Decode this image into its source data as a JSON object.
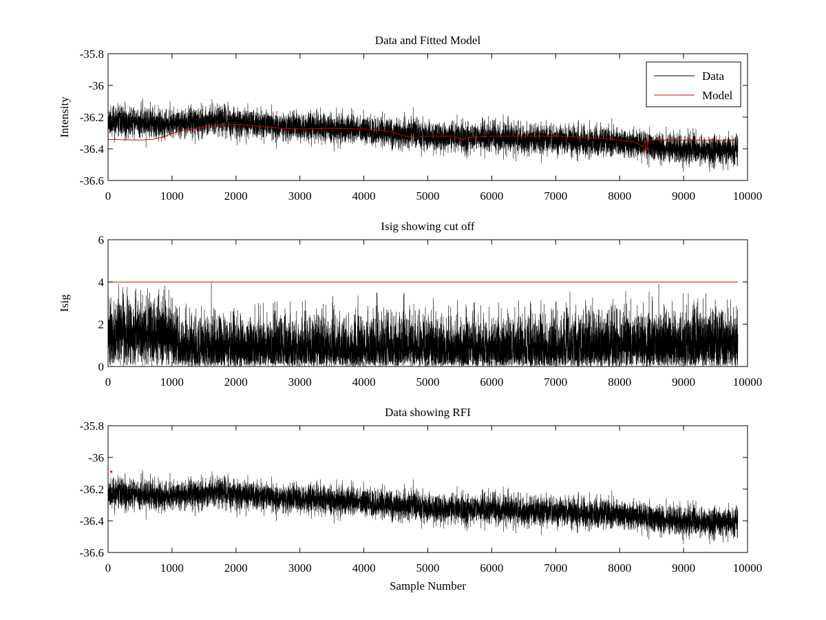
{
  "figure": {
    "background": "#ffffff"
  },
  "chart_data": [
    {
      "type": "line",
      "title": "Data and Fitted Model",
      "xlabel": "",
      "ylabel": "Intensity",
      "xlim": [
        0,
        10000
      ],
      "ylim": [
        -36.6,
        -35.8
      ],
      "xticks": [
        0,
        1000,
        2000,
        3000,
        4000,
        5000,
        6000,
        7000,
        8000,
        9000,
        10000
      ],
      "xtick_labels": [
        "0",
        "1000",
        "2000",
        "3000",
        "4000",
        "5000",
        "6000",
        "7000",
        "8000",
        "9000",
        "10000"
      ],
      "yticks": [
        -36.6,
        -36.4,
        -36.2,
        -36,
        -35.8
      ],
      "ytick_labels": [
        "-36.6",
        "-36.4",
        "-36.2",
        "-36",
        "-35.8"
      ],
      "legend": {
        "location": "top-right",
        "entries": [
          "Data",
          "Model"
        ]
      },
      "series": [
        {
          "name": "Data",
          "color": "#000000",
          "style": "noise",
          "n_samples": 9850,
          "seed": 11,
          "trend_x": [
            0,
            1000,
            1700,
            2500,
            4000,
            5000,
            6000,
            7000,
            8000,
            9000,
            9850
          ],
          "trend_y": [
            -36.23,
            -36.24,
            -36.22,
            -36.25,
            -36.28,
            -36.32,
            -36.33,
            -36.34,
            -36.36,
            -36.4,
            -36.41
          ],
          "noise_sd": 0.045
        },
        {
          "name": "Model",
          "color": "#e00000",
          "style": "line",
          "x": [
            0,
            500,
            700,
            900,
            1100,
            1500,
            1800,
            2000,
            2300,
            2700,
            3000,
            3500,
            4000,
            4400,
            4650,
            4750,
            5000,
            5400,
            5500,
            5550,
            5600,
            6000,
            7000,
            7600,
            8000,
            8200,
            8300,
            8350,
            8400,
            8420,
            8450,
            9000,
            9850
          ],
          "y": [
            -36.34,
            -36.345,
            -36.34,
            -36.32,
            -36.29,
            -36.26,
            -36.245,
            -36.245,
            -36.255,
            -36.27,
            -36.275,
            -36.27,
            -36.275,
            -36.29,
            -36.32,
            -36.33,
            -36.32,
            -36.32,
            -36.335,
            -36.345,
            -36.33,
            -36.32,
            -36.32,
            -36.33,
            -36.345,
            -36.355,
            -36.37,
            -36.39,
            -36.35,
            -36.43,
            -36.345,
            -36.345,
            -36.345
          ]
        }
      ]
    },
    {
      "type": "line",
      "title": "Isig showing cut off",
      "xlabel": "",
      "ylabel": "Isig",
      "xlim": [
        0,
        10000
      ],
      "ylim": [
        0,
        6
      ],
      "xticks": [
        0,
        1000,
        2000,
        3000,
        4000,
        5000,
        6000,
        7000,
        8000,
        9000,
        10000
      ],
      "xtick_labels": [
        "0",
        "1000",
        "2000",
        "3000",
        "4000",
        "5000",
        "6000",
        "7000",
        "8000",
        "9000",
        "10000"
      ],
      "yticks": [
        0,
        2,
        4,
        6
      ],
      "ytick_labels": [
        "0",
        "2",
        "4",
        "6"
      ],
      "series": [
        {
          "name": "Isig",
          "color": "#000000",
          "style": "abs-noise",
          "n_samples": 9850,
          "seed": 23,
          "trend_x": [
            0,
            1000,
            1100,
            2000,
            4000,
            6000,
            7000,
            8000,
            9000,
            9850
          ],
          "trend_y": [
            1.45,
            1.45,
            0.8,
            0.75,
            0.75,
            0.75,
            0.8,
            0.9,
            1.0,
            1.05
          ],
          "noise_sd": 0.85
        },
        {
          "name": "Cut off",
          "color": "#e00000",
          "style": "line",
          "x": [
            0,
            9850
          ],
          "y": [
            4,
            4
          ]
        }
      ]
    },
    {
      "type": "line",
      "title": "Data showing RFI",
      "xlabel": "Sample Number",
      "ylabel": "",
      "xlim": [
        0,
        10000
      ],
      "ylim": [
        -36.6,
        -35.8
      ],
      "xticks": [
        0,
        1000,
        2000,
        3000,
        4000,
        5000,
        6000,
        7000,
        8000,
        9000,
        10000
      ],
      "xtick_labels": [
        "0",
        "1000",
        "2000",
        "3000",
        "4000",
        "5000",
        "6000",
        "7000",
        "8000",
        "9000",
        "10000"
      ],
      "yticks": [
        -36.6,
        -36.4,
        -36.2,
        -36,
        -35.8
      ],
      "ytick_labels": [
        "-36.6",
        "-36.4",
        "-36.2",
        "-36",
        "-35.8"
      ],
      "series": [
        {
          "name": "Data",
          "color": "#000000",
          "style": "noise",
          "n_samples": 9850,
          "seed": 11,
          "trend_x": [
            0,
            1000,
            1700,
            2500,
            4000,
            5000,
            6000,
            7000,
            8000,
            9000,
            9850
          ],
          "trend_y": [
            -36.23,
            -36.24,
            -36.22,
            -36.25,
            -36.28,
            -36.32,
            -36.33,
            -36.34,
            -36.36,
            -36.4,
            -36.41
          ],
          "noise_sd": 0.045
        },
        {
          "name": "RFI",
          "color": "#e00000",
          "style": "markers",
          "x": [
            50
          ],
          "y": [
            -36.09
          ]
        }
      ]
    }
  ]
}
